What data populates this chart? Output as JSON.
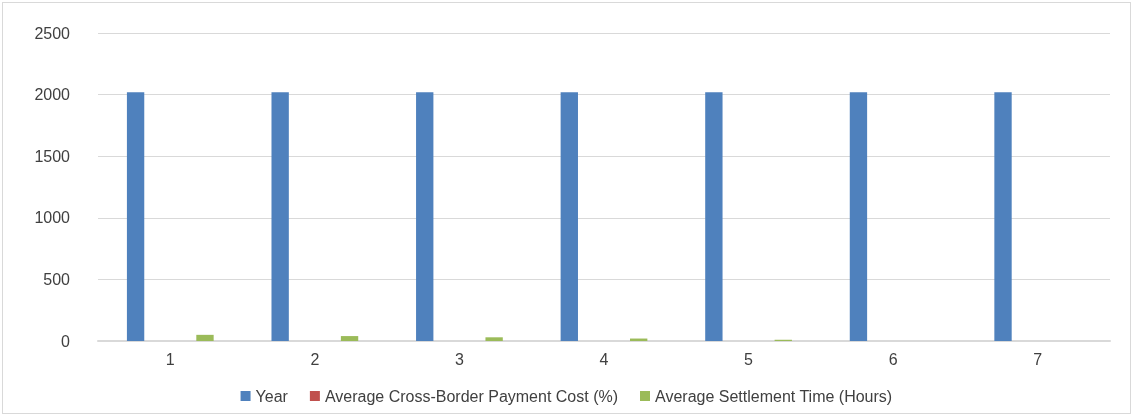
{
  "chart_data": {
    "type": "bar",
    "categories": [
      "1",
      "2",
      "3",
      "4",
      "5",
      "6",
      "7"
    ],
    "series": [
      {
        "name": "Year",
        "color": "#4f81bd",
        "values": [
          2020,
          2020,
          2020,
          2020,
          2020,
          2020,
          2020
        ]
      },
      {
        "name": "Average Cross-Border Payment Cost (%)",
        "color": "#c0504d",
        "values": [
          0,
          0,
          0,
          0,
          0,
          0,
          0
        ]
      },
      {
        "name": "Average Settlement Time (Hours)",
        "color": "#9bbb59",
        "values": [
          50,
          40,
          30,
          20,
          10,
          0,
          0
        ]
      }
    ],
    "ylim": [
      0,
      2500
    ],
    "yticks": [
      0,
      500,
      1000,
      1500,
      2000,
      2500
    ],
    "grid": "y",
    "legend": "bottom"
  }
}
